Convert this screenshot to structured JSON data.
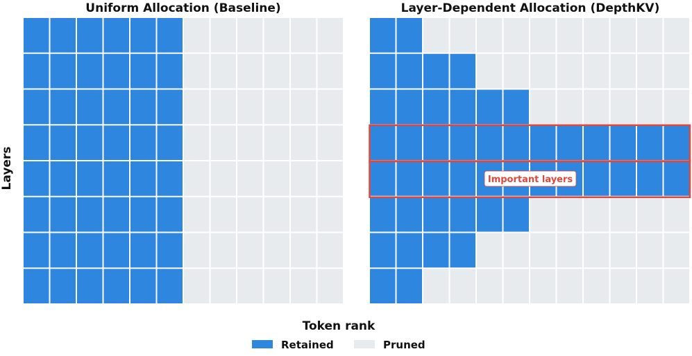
{
  "panels": [
    {
      "title": "Uniform Allocation (Baseline)",
      "retained_tokens_per_layer": [
        6,
        6,
        6,
        6,
        6,
        6,
        6,
        6
      ]
    },
    {
      "title": "Layer-Dependent Allocation (DepthKV)",
      "retained_tokens_per_layer": [
        2,
        4,
        6,
        12,
        12,
        6,
        4,
        2
      ],
      "highlighted_layers": [
        4,
        5
      ],
      "annotation": "Important layers"
    }
  ],
  "grid": {
    "layers": 8,
    "tokens": 12
  },
  "axes": {
    "xlabel": "Token rank",
    "ylabel": "Layers"
  },
  "legend": {
    "items": [
      {
        "label": "Retained",
        "color": "#2e86de"
      },
      {
        "label": "Pruned",
        "color": "#e8ebee"
      }
    ]
  },
  "colors": {
    "retained": "#2e86de",
    "pruned": "#e8ebee",
    "highlight": "#e0483c",
    "gridline": "#ffffff"
  }
}
